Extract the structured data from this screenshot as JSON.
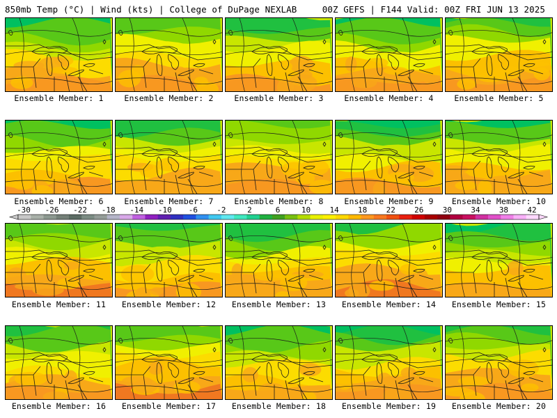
{
  "header": {
    "left": "850mb Temp (°C) | Wind (kts) | College of DuPage NEXLAB",
    "right": "00Z GEFS | F144 Valid: 00Z FRI JUN 13 2025"
  },
  "panels": [
    {
      "label": "Ensemble Member: 1"
    },
    {
      "label": "Ensemble Member: 2"
    },
    {
      "label": "Ensemble Member: 3"
    },
    {
      "label": "Ensemble Member: 4"
    },
    {
      "label": "Ensemble Member: 5"
    },
    {
      "label": "Ensemble Member: 6"
    },
    {
      "label": "Ensemble Member: 7"
    },
    {
      "label": "Ensemble Member: 8"
    },
    {
      "label": "Ensemble Member: 9"
    },
    {
      "label": "Ensemble Member: 10"
    },
    {
      "label": "Ensemble Member: 11"
    },
    {
      "label": "Ensemble Member: 12"
    },
    {
      "label": "Ensemble Member: 13"
    },
    {
      "label": "Ensemble Member: 14"
    },
    {
      "label": "Ensemble Member: 15"
    },
    {
      "label": "Ensemble Member: 16"
    },
    {
      "label": "Ensemble Member: 17"
    },
    {
      "label": "Ensemble Member: 18"
    },
    {
      "label": "Ensemble Member: 19"
    },
    {
      "label": "Ensemble Member: 20"
    }
  ],
  "colorbar": {
    "ticks": [
      "-30",
      "-26",
      "-22",
      "-18",
      "-14",
      "-10",
      "-6",
      "-2",
      "2",
      "6",
      "10",
      "14",
      "18",
      "22",
      "26",
      "30",
      "34",
      "38",
      "42"
    ],
    "colors": [
      "#c8c8c8",
      "#a8b0a8",
      "#8c9890",
      "#748078",
      "#5c6c64",
      "#7c8c84",
      "#949c98",
      "#b4b4c8",
      "#d8a8e8",
      "#c060e0",
      "#9020c0",
      "#6020b0",
      "#3030c0",
      "#2050e0",
      "#3090f0",
      "#40c8f0",
      "#60e8f0",
      "#40e8c0",
      "#20d090",
      "#20b040",
      "#40a020",
      "#78c010",
      "#b4dc00",
      "#e8f000",
      "#fcf000",
      "#fcd800",
      "#fcb800",
      "#fc9820",
      "#f87820",
      "#f05010",
      "#e82010",
      "#d00000",
      "#a80000",
      "#900010",
      "#b00040",
      "#c81060",
      "#d030a0",
      "#e050c8",
      "#f080e8",
      "#f8b0f8",
      "#fcd8fc"
    ]
  }
}
